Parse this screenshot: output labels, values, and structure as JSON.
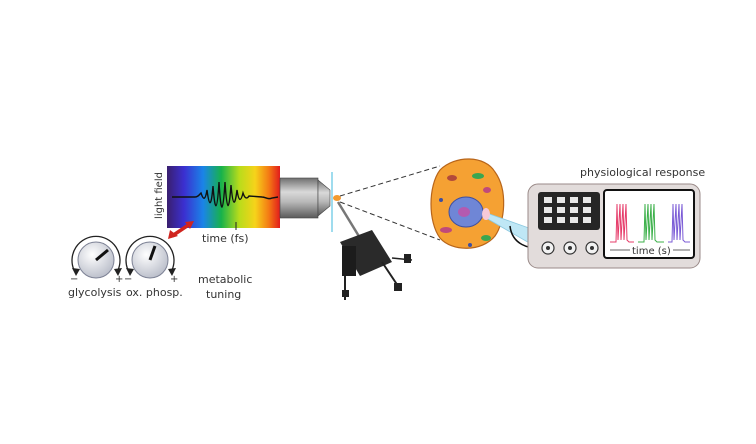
{
  "diagram": {
    "spectrum": {
      "y_label": "light field",
      "x_label": "time (fs)"
    },
    "knobs": {
      "left_label": "glycolysis",
      "right_label": "ox. phosp.",
      "minus": "−",
      "plus": "+"
    },
    "metabolic_label_line1": "metabolic",
    "metabolic_label_line2": "tuning",
    "recorder": {
      "title": "physiological response",
      "screen_x_label": "time (s)"
    },
    "colors": {
      "panel": "#e2dcdb",
      "cell": "#f5a133",
      "nucleus": "#6f86d6",
      "arrow": "#d0241e",
      "pipette": "#bfe7f5"
    }
  }
}
